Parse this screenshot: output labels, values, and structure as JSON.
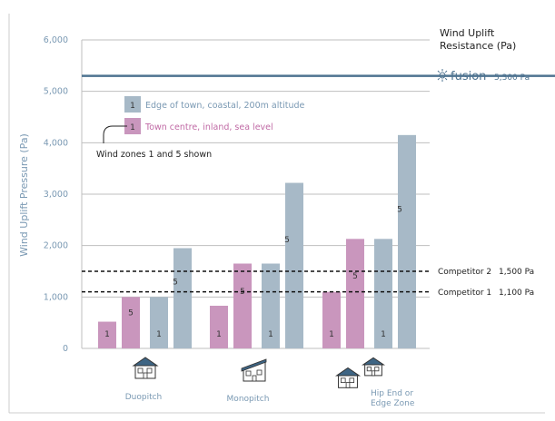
{
  "chart_data": {
    "type": "bar",
    "title": "",
    "ylabel": "Wind Uplift Pressure (Pa)",
    "ylim": [
      0,
      6000
    ],
    "yticks": [
      "0",
      "1,000",
      "2,000",
      "3,000",
      "4,000",
      "5,000",
      "6,000"
    ],
    "ytick_values": [
      0,
      1000,
      2000,
      3000,
      4000,
      5000,
      6000
    ],
    "grid": true,
    "categories": [
      "Duopitch",
      "Monopitch",
      "Hip End or Edge Zone"
    ],
    "series": [
      {
        "name": "Town centre, inland, sea level",
        "color": "#c996bd",
        "values": [
          [
            520,
            1000
          ],
          [
            830,
            1650
          ],
          [
            1100,
            2130
          ]
        ],
        "zone_labels": [
          "1",
          "5"
        ]
      },
      {
        "name": "Edge of town, coastal, 200m altitude",
        "color": "#a7b9c7",
        "values": [
          [
            1000,
            1950
          ],
          [
            1650,
            3220
          ],
          [
            2130,
            4150
          ]
        ],
        "zone_labels": [
          "1",
          "5"
        ]
      }
    ],
    "legend": {
      "series_badge": "1",
      "note": "Wind zones 1 and 5 shown",
      "placement": "top-left"
    },
    "reference_lines": [
      {
        "value": 5300,
        "name": "fusion",
        "value_label": "5,300 Pa",
        "style": "solid",
        "color": "#4e7390"
      },
      {
        "value": 1500,
        "name": "Competitor 2",
        "value_label": "1,500 Pa",
        "style": "dashed",
        "color": "#111111"
      },
      {
        "value": 1100,
        "name": "Competitor 1",
        "value_label": "1,100 Pa",
        "style": "dashed",
        "color": "#111111"
      }
    ],
    "right_axis_title": [
      "Wind Uplift",
      "Resistance (Pa)"
    ],
    "building_icons": [
      "house-duopitch-icon",
      "house-monopitch-icon",
      "house-hip-end-icon"
    ],
    "colors": {
      "axis_text": "#7a99b3",
      "grid": "#bfbfbf",
      "fusion_text": "#4e7390",
      "border": "#cccccc",
      "bar_label": "#333333"
    }
  }
}
